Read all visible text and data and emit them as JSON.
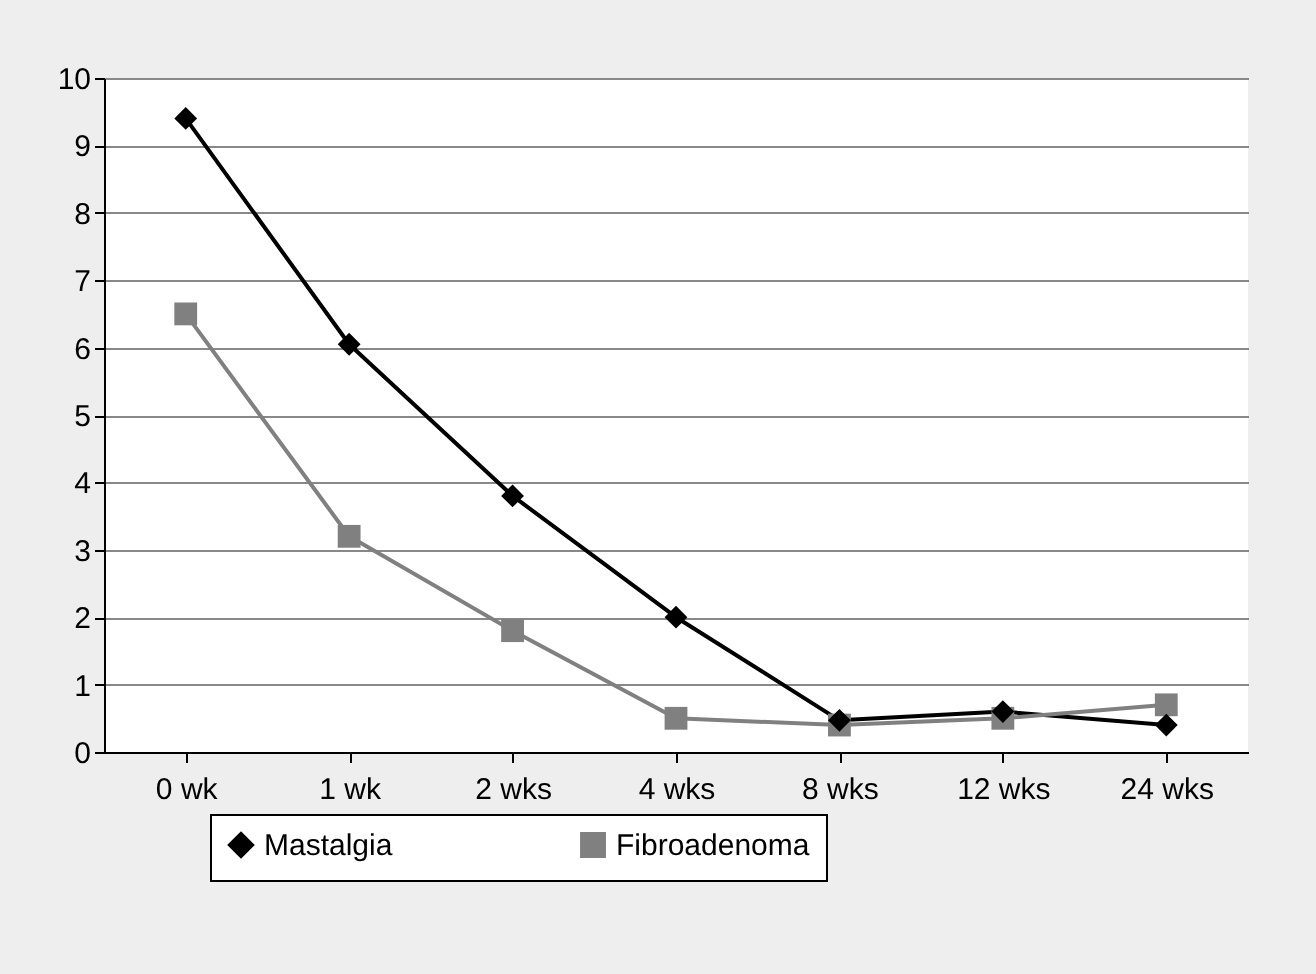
{
  "chart_data": {
    "type": "line",
    "categories": [
      "0 wk",
      "1 wk",
      "2 wks",
      "4 wks",
      "8 wks",
      "12 wks",
      "24 wks"
    ],
    "series": [
      {
        "name": "Mastalgia",
        "color": "#000000",
        "marker": "diamond",
        "values": [
          9.4,
          6.05,
          3.8,
          2.0,
          0.47,
          0.6,
          0.4
        ]
      },
      {
        "name": "Fibroadenoma",
        "color": "#808080",
        "marker": "square",
        "values": [
          6.5,
          3.2,
          1.8,
          0.5,
          0.4,
          0.5,
          0.7
        ]
      }
    ],
    "ylim": [
      0,
      10
    ],
    "yticks": [
      0,
      1,
      2,
      3,
      4,
      5,
      6,
      7,
      8,
      9,
      10
    ],
    "grid": "y",
    "legend": "bottom"
  }
}
